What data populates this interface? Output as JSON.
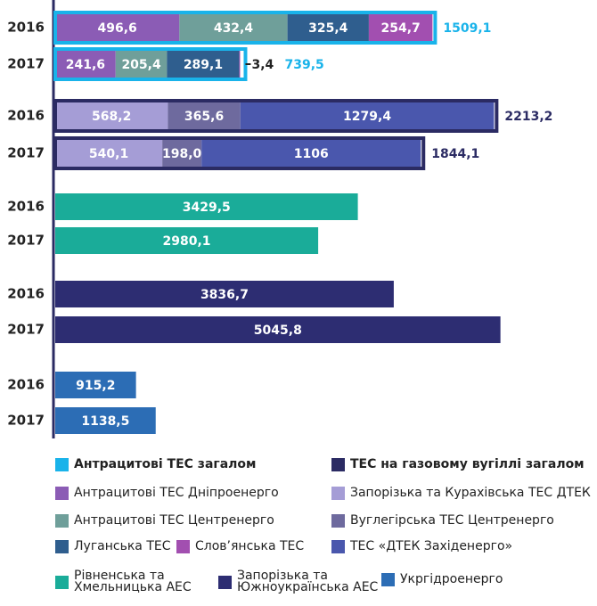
{
  "chart_data": {
    "type": "stacked-bar-groups",
    "groups": [
      {
        "name": "Антрацитові ТЕС загалом",
        "color": "#19b3ea",
        "xlim": [
          0,
          1800
        ],
        "categories": [
          "2016",
          "2017"
        ],
        "series": [
          {
            "name": "Антрацитові ТЕС Дніпроенерго",
            "color": "#8b5cb5",
            "values": [
              496.6,
              241.6
            ],
            "value_labels": [
              "496,6",
              "241,6"
            ]
          },
          {
            "name": "Антрацитові ТЕС Центренерго",
            "color": "#6f9f9a",
            "values": [
              432.4,
              205.4
            ],
            "value_labels": [
              "432,4",
              "205,4"
            ]
          },
          {
            "name": "Луганська ТЕС",
            "color": "#2f5e8e",
            "values": [
              325.4,
              289.1
            ],
            "value_labels": [
              "325,4",
              "289,1"
            ]
          },
          {
            "name": "Слов’янська ТЕС",
            "color": "#a24fb0",
            "values": [
              254.7,
              3.4
            ],
            "value_labels": [
              "254,7",
              "3,4"
            ]
          }
        ],
        "totals": [
          1509.1,
          739.5
        ],
        "total_labels": [
          "1509,1",
          "739,5"
        ]
      },
      {
        "name": "ТЕС на газовому вугіллі загалом",
        "color": "#2b2b63",
        "xlim": [
          0,
          2270
        ],
        "categories": [
          "2016",
          "2017"
        ],
        "series": [
          {
            "name": "Запорізька та Курахівська ТЕС ДТЕК",
            "color": "#a59dd6",
            "values": [
              568.2,
              540.1
            ],
            "value_labels": [
              "568,2",
              "540,1"
            ]
          },
          {
            "name": "Вуглегірська ТЕС Центренерго",
            "color": "#6e6a9e",
            "values": [
              365.6,
              198.0
            ],
            "value_labels": [
              "365,6",
              "198,0"
            ]
          },
          {
            "name": "ТЕС «ДТЕК Західенерго»",
            "color": "#4a57ad",
            "values": [
              1279.4,
              1106
            ],
            "value_labels": [
              "1279,4",
              "1106"
            ]
          }
        ],
        "totals": [
          2213.2,
          1844.1
        ],
        "total_labels": [
          "2213,2",
          "1844,1"
        ]
      },
      {
        "xlim": [
          0,
          5100
        ],
        "categories": [
          "2016",
          "2017"
        ],
        "series": [
          {
            "name": "Рівненська та Хмельницька АЕС",
            "color": "#1aac99",
            "values": [
              3429.5,
              2980.1
            ],
            "value_labels": [
              "3429,5",
              "2980,1"
            ]
          }
        ]
      },
      {
        "xlim": [
          0,
          5100
        ],
        "categories": [
          "2016",
          "2017"
        ],
        "series": [
          {
            "name": "Запорізька та Южноукраїнська АЕС",
            "color": "#2d2d72",
            "values": [
              3836.7,
              5045.8
            ],
            "value_labels": [
              "3836,7",
              "5045,8"
            ]
          }
        ]
      },
      {
        "xlim": [
          0,
          5100
        ],
        "categories": [
          "2016",
          "2017"
        ],
        "series": [
          {
            "name": "Укргідроенерго",
            "color": "#2c6db5",
            "values": [
              915.2,
              1138.5
            ],
            "value_labels": [
              "915,2",
              "1138,5"
            ]
          }
        ]
      }
    ]
  }
}
